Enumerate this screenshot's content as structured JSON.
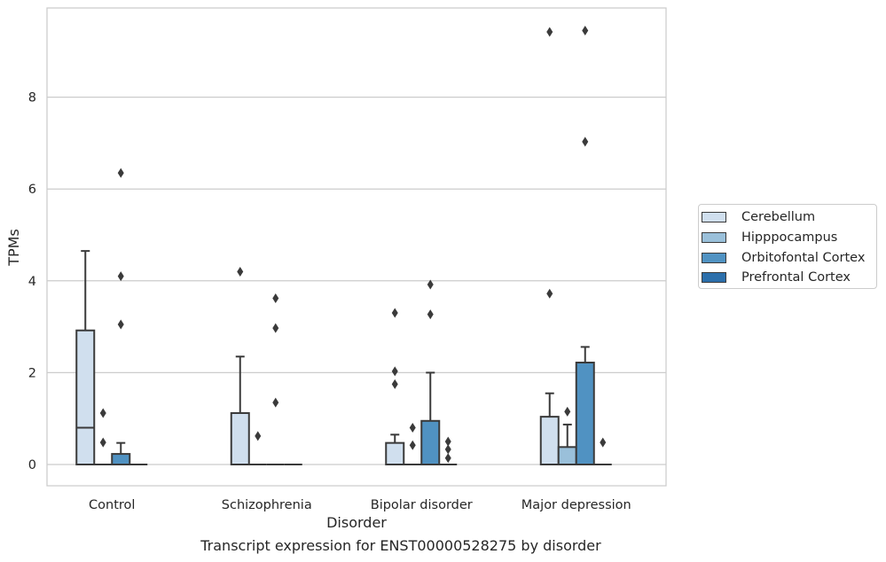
{
  "caption": "Transcript expression for ENST00000528275 by disorder",
  "chart_data": {
    "type": "boxplot",
    "title": "",
    "xlabel": "Disorder",
    "ylabel": "TPMs",
    "ylim": [
      -0.45,
      9.75
    ],
    "yticks": [
      0,
      2,
      4,
      6,
      8
    ],
    "grid": "horizontal",
    "legend_position": "right",
    "categories": [
      "Control",
      "Schizophrenia",
      "Bipolar disorder",
      "Major depression"
    ],
    "series": [
      {
        "name": "Cerebellum",
        "color": "#d0dfee"
      },
      {
        "name": "Hipppocampus",
        "color": "#9ac0da"
      },
      {
        "name": "Orbitofontal Cortex",
        "color": "#5092c2"
      },
      {
        "name": "Prefrontal Cortex",
        "color": "#2c6fab"
      }
    ],
    "boxes": [
      [
        {
          "q1": 0,
          "median": 0.8,
          "q3": 2.92,
          "whisker_low": 0,
          "whisker_high": 4.65,
          "outliers": []
        },
        {
          "q1": 0,
          "median": 0,
          "q3": 0,
          "whisker_low": 0,
          "whisker_high": 0,
          "outliers": [
            1.12,
            0.48
          ]
        },
        {
          "q1": 0,
          "median": 0,
          "q3": 0.23,
          "whisker_low": 0,
          "whisker_high": 0.47,
          "outliers": [
            6.35,
            4.1,
            3.05
          ]
        },
        {
          "q1": 0,
          "median": 0,
          "q3": 0,
          "whisker_low": 0,
          "whisker_high": 0,
          "outliers": []
        }
      ],
      [
        {
          "q1": 0,
          "median": 0,
          "q3": 1.12,
          "whisker_low": 0,
          "whisker_high": 2.35,
          "outliers": [
            4.2
          ]
        },
        {
          "q1": 0,
          "median": 0,
          "q3": 0,
          "whisker_low": 0,
          "whisker_high": 0,
          "outliers": [
            0.62
          ]
        },
        {
          "q1": 0,
          "median": 0,
          "q3": 0,
          "whisker_low": 0,
          "whisker_high": 0,
          "outliers": [
            3.62,
            2.97,
            1.35
          ]
        },
        {
          "q1": 0,
          "median": 0,
          "q3": 0,
          "whisker_low": 0,
          "whisker_high": 0,
          "outliers": []
        }
      ],
      [
        {
          "q1": 0,
          "median": 0,
          "q3": 0.47,
          "whisker_low": 0,
          "whisker_high": 0.65,
          "outliers": [
            3.3,
            2.03,
            1.75
          ]
        },
        {
          "q1": 0,
          "median": 0,
          "q3": 0,
          "whisker_low": 0,
          "whisker_high": 0,
          "outliers": [
            0.8,
            0.42
          ]
        },
        {
          "q1": 0,
          "median": 0,
          "q3": 0.95,
          "whisker_low": 0,
          "whisker_high": 2.0,
          "outliers": [
            3.92,
            3.27
          ]
        },
        {
          "q1": 0,
          "median": 0,
          "q3": 0,
          "whisker_low": 0,
          "whisker_high": 0,
          "outliers": [
            0.5,
            0.33,
            0.14
          ]
        }
      ],
      [
        {
          "q1": 0,
          "median": 0,
          "q3": 1.04,
          "whisker_low": 0,
          "whisker_high": 1.55,
          "outliers": [
            9.42,
            3.72
          ]
        },
        {
          "q1": 0,
          "median": 0,
          "q3": 0.38,
          "whisker_low": 0,
          "whisker_high": 0.87,
          "outliers": [
            1.15
          ]
        },
        {
          "q1": 0,
          "median": 0,
          "q3": 2.22,
          "whisker_low": 0,
          "whisker_high": 2.56,
          "outliers": [
            9.45,
            7.03
          ]
        },
        {
          "q1": 0,
          "median": 0,
          "q3": 0,
          "whisker_low": 0,
          "whisker_high": 0,
          "outliers": [
            0.48
          ]
        }
      ]
    ]
  }
}
